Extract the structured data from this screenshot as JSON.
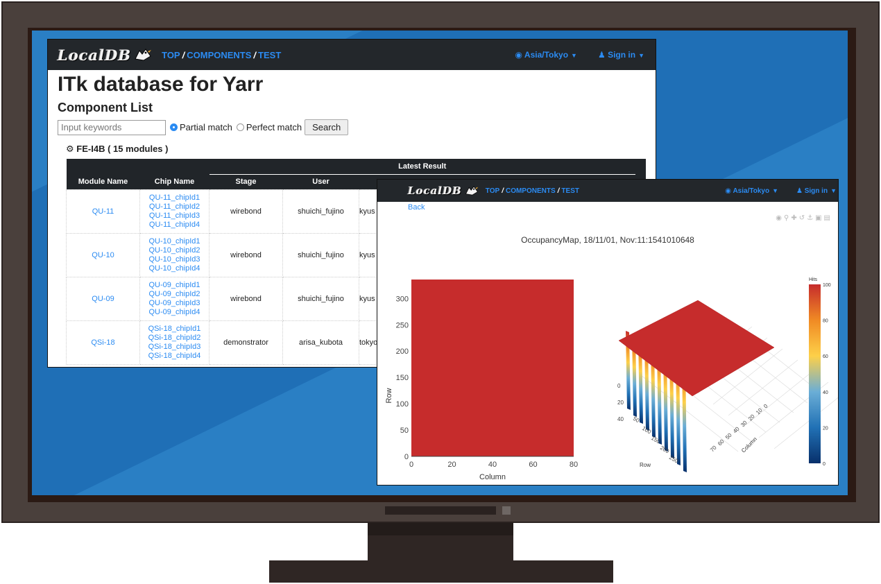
{
  "colors": {
    "accent": "#2b8bf2",
    "navbar": "#23272b",
    "surface": "#c62c2c"
  },
  "window1": {
    "nav": {
      "logo": "LocalDB",
      "links": [
        "TOP",
        "COMPONENTS",
        "TEST"
      ],
      "timezone": "Asia/Tokyo",
      "signin": "Sign in"
    },
    "title": "ITk database for Yarr",
    "subtitle": "Component List",
    "search": {
      "placeholder": "Input keywords",
      "option_partial": "Partial match",
      "option_perfect": "Perfect match",
      "button": "Search"
    },
    "section": "FE-I4B ( 15 modules )",
    "table": {
      "group_header": "Latest Result",
      "headers": [
        "Module Name",
        "Chip Name",
        "Stage",
        "User"
      ],
      "rows": [
        {
          "module": "QU-11",
          "chips": [
            "QU-11_chipId1",
            "QU-11_chipId2",
            "QU-11_chipId3",
            "QU-11_chipId4"
          ],
          "stage": "wirebond",
          "user": "shuichi_fujino",
          "site": "kyus"
        },
        {
          "module": "QU-10",
          "chips": [
            "QU-10_chipId1",
            "QU-10_chipId2",
            "QU-10_chipId3",
            "QU-10_chipId4"
          ],
          "stage": "wirebond",
          "user": "shuichi_fujino",
          "site": "kyus"
        },
        {
          "module": "QU-09",
          "chips": [
            "QU-09_chipId1",
            "QU-09_chipId2",
            "QU-09_chipId3",
            "QU-09_chipId4"
          ],
          "stage": "wirebond",
          "user": "shuichi_fujino",
          "site": "kyus"
        },
        {
          "module": "QSi-18",
          "chips": [
            "QSi-18_chipId1",
            "QSi-18_chipId2",
            "QSi-18_chipId3",
            "QSi-18_chipId4"
          ],
          "stage": "demonstrator",
          "user": "arisa_kubota",
          "site": "tokyo"
        }
      ]
    }
  },
  "window2": {
    "nav": {
      "logo": "LocalDB",
      "links": [
        "TOP",
        "COMPONENTS",
        "TEST"
      ],
      "timezone": "Asia/Tokyo",
      "signin": "Sign in"
    },
    "back": "Back",
    "toolbar_icons": [
      "camera-icon",
      "zoom-icon",
      "pan-icon",
      "reset-icon",
      "anchor-icon",
      "zoom-in-icon",
      "zoom-out-icon"
    ],
    "plot_title": "OccupancyMap, 18/11/01, Nov:11:1541010648"
  },
  "chart_data": [
    {
      "type": "heatmap",
      "title": "OccupancyMap, 18/11/01, Nov:11:1541010648",
      "xlabel": "Column",
      "ylabel": "Row",
      "xlim": [
        0,
        80
      ],
      "ylim": [
        0,
        336
      ],
      "xticks": [
        0,
        20,
        40,
        60,
        80
      ],
      "yticks": [
        0,
        50,
        100,
        150,
        200,
        250,
        300
      ],
      "fill_value": 100
    },
    {
      "type": "surface",
      "xlabel": "Column",
      "ylabel": "Row",
      "row_ticks": [
        50,
        100,
        150,
        200,
        250
      ],
      "column_ticks": [
        0,
        10,
        20,
        30,
        40,
        50,
        60,
        70
      ],
      "z_ticks": [
        0,
        20,
        40
      ],
      "plateau_value": 100
    },
    {
      "type": "colorbar",
      "title": "Hits",
      "ticks": [
        0,
        20,
        40,
        60,
        80,
        100
      ],
      "colorscale": [
        "#08306b",
        "#2171b5",
        "#6baed6",
        "#fdd049",
        "#f08a24",
        "#c62c2c"
      ]
    }
  ]
}
